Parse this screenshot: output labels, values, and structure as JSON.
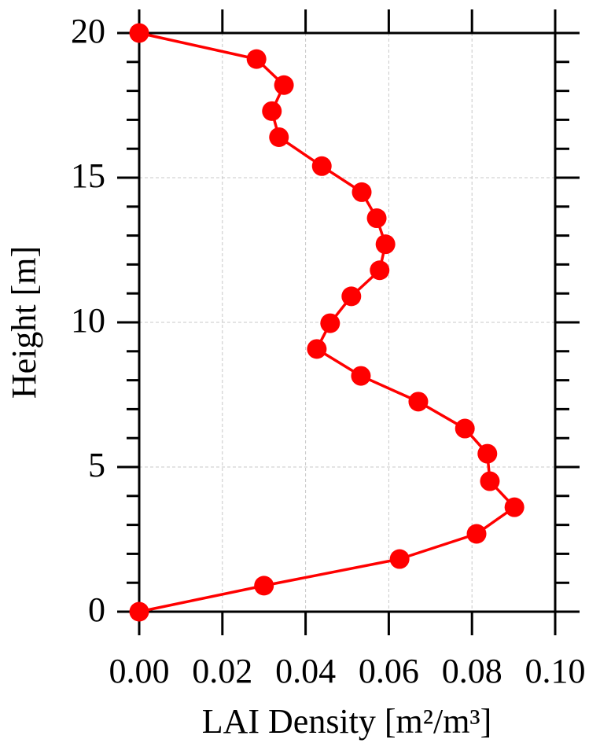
{
  "chart_data": {
    "type": "line",
    "xlabel": "LAI Density [m²/m³]",
    "ylabel": "Height [m]",
    "color": "#ff0000",
    "x": [
      0,
      0.03,
      0.0626,
      0.0811,
      0.0902,
      0.0843,
      0.0837,
      0.0783,
      0.0671,
      0.0533,
      0.0427,
      0.0459,
      0.051,
      0.0578,
      0.0592,
      0.0571,
      0.0535,
      0.0439,
      0.0336,
      0.0319,
      0.0348,
      0.0282,
      0
    ],
    "values": [
      0,
      0.9,
      1.82,
      2.69,
      3.61,
      4.51,
      5.46,
      6.33,
      7.26,
      8.15,
      9.08,
      9.97,
      10.9,
      11.8,
      12.7,
      13.6,
      14.5,
      15.4,
      16.4,
      17.3,
      18.2,
      19.1,
      20
    ],
    "xlim": [
      0,
      0.1
    ],
    "ylim": [
      0,
      20
    ],
    "xticks": [
      {
        "value": 0,
        "label": "0.00"
      },
      {
        "value": 0.02,
        "label": "0.02"
      },
      {
        "value": 0.04,
        "label": "0.04"
      },
      {
        "value": 0.06,
        "label": "0.06"
      },
      {
        "value": 0.08,
        "label": "0.08"
      },
      {
        "value": 0.1,
        "label": "0.10"
      }
    ],
    "yticks": [
      0,
      5,
      10,
      15,
      20
    ],
    "yminorticks": [
      1,
      2,
      3,
      4,
      6,
      7,
      8,
      9,
      11,
      12,
      13,
      14,
      16,
      17,
      18,
      19
    ],
    "grid": true
  }
}
